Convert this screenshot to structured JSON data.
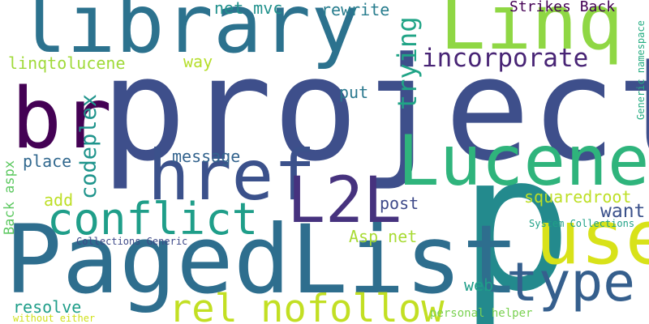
{
  "words": {
    "project": {
      "text": "project",
      "color": "#3e4f8b"
    },
    "p": {
      "text": "p",
      "color": "#238a8d"
    },
    "pagedlist": {
      "text": "PagedList",
      "color": "#2e6e8e"
    },
    "library": {
      "text": "library",
      "color": "#2c728e"
    },
    "linq": {
      "text": "Linq",
      "color": "#8fd744"
    },
    "br": {
      "text": "br",
      "color": "#440154"
    },
    "href": {
      "text": "href",
      "color": "#3b518b"
    },
    "lucene": {
      "text": "Lucene",
      "color": "#2fb47c"
    },
    "l2l": {
      "text": "L2L",
      "color": "#46327e"
    },
    "conflict": {
      "text": "conflict",
      "color": "#1f9e89"
    },
    "use": {
      "text": "use",
      "color": "#d8e219"
    },
    "type": {
      "text": "type",
      "color": "#355f8d"
    },
    "rel_nofollow": {
      "text": "rel nofollow",
      "color": "#c2df23"
    },
    "incorporate": {
      "text": "incorporate",
      "color": "#482475"
    },
    "trying": {
      "text": "trying",
      "color": "#20a486"
    },
    "want": {
      "text": "want",
      "color": "#3b518b"
    },
    "codeplex": {
      "text": "codeplex",
      "color": "#1f948c"
    },
    "linqtolucene": {
      "text": "linqtolucene",
      "color": "#a0da39"
    },
    "net_mvc": {
      "text": "net mvc",
      "color": "#21918c"
    },
    "rewrite": {
      "text": "rewrite",
      "color": "#287d8e"
    },
    "strikes_back": {
      "text": "Strikes Back",
      "color": "#440154"
    },
    "way": {
      "text": "way",
      "color": "#b5de2b"
    },
    "put": {
      "text": "put",
      "color": "#2a788e"
    },
    "message": {
      "text": "message",
      "color": "#33638d"
    },
    "place": {
      "text": "place",
      "color": "#31688e"
    },
    "add": {
      "text": "add",
      "color": "#bddf26"
    },
    "post": {
      "text": "post",
      "color": "#3e4a89"
    },
    "squaredroot": {
      "text": "squaredroot",
      "color": "#bddf26"
    },
    "back_aspx": {
      "text": "Back aspx",
      "color": "#5ec962"
    },
    "collections_generic": {
      "text": "Collections Generic",
      "color": "#3e4a89"
    },
    "asp_net": {
      "text": "Asp net",
      "color": "#a8db34"
    },
    "system_collections": {
      "text": "System Collections",
      "color": "#1fa187"
    },
    "web": {
      "text": "web",
      "color": "#1f9e89"
    },
    "resolve": {
      "text": "resolve",
      "color": "#1f9e89"
    },
    "without_either": {
      "text": "without either",
      "color": "#d0e11c"
    },
    "personal_helper": {
      "text": "personal helper",
      "color": "#7ad151"
    },
    "generic_namespace": {
      "text": "Generic namespace",
      "color": "#25ac82"
    }
  }
}
